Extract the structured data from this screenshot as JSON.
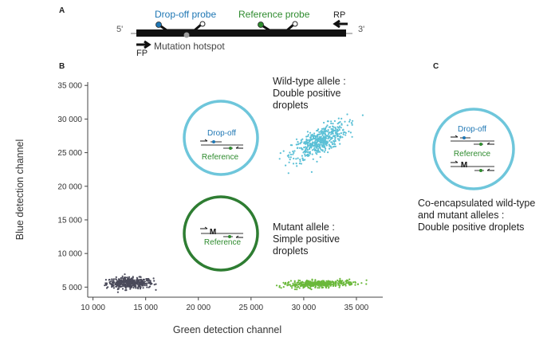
{
  "panel_a": {
    "label": "A",
    "five_prime": "5'",
    "three_prime": "3'",
    "dropoff_probe": "Drop-off probe",
    "reference_probe": "Reference probe",
    "rp": "RP",
    "fp": "FP",
    "mutation_hotspot": "Mutation hotspot"
  },
  "panel_b": {
    "label": "B"
  },
  "panel_c": {
    "label": "C",
    "dropoff": "Drop-off",
    "reference": "Reference",
    "mutant_marker": "M",
    "caption_line1": "Co-encapsulated wild-type",
    "caption_line2": "and mutant alleles :",
    "caption_line3": "Double positive droplets"
  },
  "annotations": {
    "wildtype_line1": "Wild-type allele :",
    "wildtype_line2": "Double positive",
    "wildtype_line3": "droplets",
    "mutant_line1": "Mutant allele :",
    "mutant_line2": "Simple positive",
    "mutant_line3": "droplets",
    "inset_wt_dropoff": "Drop-off",
    "inset_wt_reference": "Reference",
    "inset_mut_reference": "Reference",
    "inset_mut_marker": "M"
  },
  "colors": {
    "blue_probe": "#1f77b4",
    "green_probe": "#2e8b2e",
    "wildtype_cluster": "#5bc0d6",
    "mutant_cluster": "#6ab83a",
    "negative_cluster": "#4a4a5a",
    "wildtype_circle": "#6ec6db",
    "mutant_circle": "#2e7d32"
  },
  "chart_data": {
    "type": "scatter",
    "xlabel": "Green detection channel",
    "ylabel": "Blue detection channel",
    "xlim": [
      9500,
      37500
    ],
    "ylim": [
      3500,
      35500
    ],
    "xticks": [
      10000,
      15000,
      20000,
      25000,
      30000,
      35000
    ],
    "xtick_labels": [
      "10 000",
      "15 000",
      "20 000",
      "25 000",
      "30 000",
      "35 000"
    ],
    "yticks": [
      5000,
      10000,
      15000,
      20000,
      25000,
      30000,
      35000
    ],
    "ytick_labels": [
      "5 000",
      "10 000",
      "15 000",
      "20 000",
      "25 000",
      "30 000",
      "35 000"
    ],
    "grid": false,
    "series": [
      {
        "cx": 13500,
        "cy": 5600,
        "sx": 1100,
        "sy": 400,
        "n": 420,
        "xmin": 11000,
        "xmax": 16300
      },
      {
        "cx": 31500,
        "cy": 26700,
        "sx": 1300,
        "sy": 1000,
        "n": 480,
        "xmin": 27500,
        "xmax": 35800
      },
      {
        "cx": 31500,
        "cy": 5500,
        "sx": 1700,
        "sy": 250,
        "n": 380,
        "xmin": 27300,
        "xmax": 36000
      }
    ]
  }
}
